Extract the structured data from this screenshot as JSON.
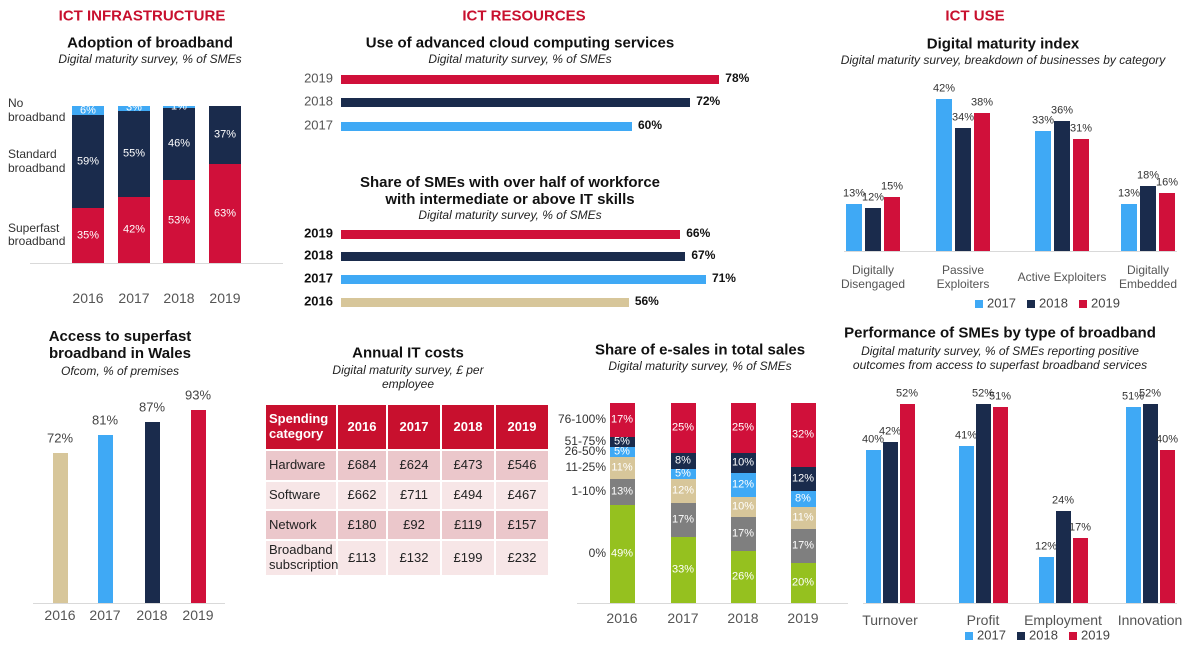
{
  "sections": [
    "ICT INFRASTRUCTURE",
    "ICT RESOURCES",
    "ICT USE"
  ],
  "chart_data": [
    {
      "type": "bar",
      "stacked": true,
      "title": "Adoption of broadband",
      "subtitle": "Digital maturity survey, % of SMEs",
      "categories": [
        "2016",
        "2017",
        "2018",
        "2019"
      ],
      "ylim": [
        0,
        100
      ],
      "series": [
        {
          "name": "Superfast broadband",
          "color": "#d0103a",
          "values": [
            35,
            42,
            53,
            63
          ],
          "value_labels": [
            "35%",
            "42%",
            "53%",
            "63%"
          ]
        },
        {
          "name": "Standard broadband",
          "color": "#1a2b4c",
          "values": [
            59,
            55,
            46,
            37
          ],
          "value_labels": [
            "59%",
            "55%",
            "46%",
            "37%"
          ]
        },
        {
          "name": "No broadband",
          "color": "#3fa9f5",
          "values": [
            6,
            3,
            1,
            null
          ],
          "value_labels": [
            "6%",
            "3%",
            "1%",
            null
          ]
        }
      ]
    },
    {
      "type": "bar",
      "title": "Access to superfast broadband in Wales",
      "subtitle": "Ofcom, % of premises",
      "categories": [
        "2016",
        "2017",
        "2018",
        "2019"
      ],
      "values": [
        72,
        81,
        87,
        93
      ],
      "value_labels": [
        "72%",
        "81%",
        "87%",
        "93%"
      ],
      "colors": [
        "#d7c69a",
        "#3fa9f5",
        "#1a2b4c",
        "#d0103a"
      ],
      "ylim": [
        0,
        100
      ]
    },
    {
      "type": "hbar",
      "title": "Use of advanced cloud computing services",
      "subtitle": "Digital maturity survey, % of SMEs",
      "categories": [
        "2019",
        "2018",
        "2017"
      ],
      "values": [
        78,
        72,
        60
      ],
      "value_labels": [
        "78%",
        "72%",
        "60%"
      ],
      "colors": [
        "#d0103a",
        "#1a2b4c",
        "#3fa9f5"
      ],
      "xlim": [
        0,
        100
      ]
    },
    {
      "type": "hbar",
      "title": "Share of SMEs with over half of workforce with intermediate or above IT skills",
      "subtitle": "Digital maturity survey, % of SMEs",
      "categories": [
        "2019",
        "2018",
        "2017",
        "2016"
      ],
      "values": [
        66,
        67,
        71,
        56
      ],
      "value_labels": [
        "66%",
        "67%",
        "71%",
        "56%"
      ],
      "colors": [
        "#d0103a",
        "#1a2b4c",
        "#3fa9f5",
        "#d7c69a"
      ],
      "xlim": [
        0,
        100
      ]
    },
    {
      "type": "bar",
      "stacked": true,
      "title": "Share of e-sales in total sales",
      "subtitle": "Digital maturity survey, % of SMEs",
      "categories": [
        "2016",
        "2017",
        "2018",
        "2019"
      ],
      "ylim": [
        0,
        100
      ],
      "series": [
        {
          "name": "0%",
          "color": "#95c11f",
          "values": [
            49,
            33,
            26,
            20
          ],
          "value_labels": [
            "49%",
            "33%",
            "26%",
            "20%"
          ]
        },
        {
          "name": "1-10%",
          "color": "#7f7f7f",
          "values": [
            13,
            17,
            17,
            17
          ],
          "value_labels": [
            "13%",
            "17%",
            "17%",
            "17%"
          ]
        },
        {
          "name": "11-25%",
          "color": "#d7c69a",
          "values": [
            11,
            12,
            10,
            11
          ],
          "value_labels": [
            "11%",
            "12%",
            "10%",
            "11%"
          ]
        },
        {
          "name": "26-50%",
          "color": "#3fa9f5",
          "values": [
            5,
            5,
            12,
            8
          ],
          "value_labels": [
            "5%",
            "5%",
            "12%",
            "8%"
          ]
        },
        {
          "name": "51-75%",
          "color": "#1a2b4c",
          "values": [
            5,
            8,
            10,
            12
          ],
          "value_labels": [
            "5%",
            "8%",
            "10%",
            "12%"
          ]
        },
        {
          "name": "76-100%",
          "color": "#d0103a",
          "values": [
            17,
            25,
            25,
            32
          ],
          "value_labels": [
            "17%",
            "25%",
            "25%",
            "32%"
          ]
        }
      ]
    },
    {
      "type": "bar",
      "title": "Digital maturity index",
      "subtitle": "Digital maturity survey, breakdown of businesses by category",
      "categories": [
        "Digitally Disengaged",
        "Passive Exploiters",
        "Active Exploiters",
        "Digitally Embedded"
      ],
      "ylim": [
        0,
        45
      ],
      "series": [
        {
          "name": "2017",
          "color": "#3fa9f5",
          "values": [
            13,
            42,
            33,
            13
          ],
          "value_labels": [
            "13%",
            "42%",
            "33%",
            "13%"
          ]
        },
        {
          "name": "2018",
          "color": "#1a2b4c",
          "values": [
            12,
            34,
            36,
            18
          ],
          "value_labels": [
            "12%",
            "34%",
            "36%",
            "18%"
          ]
        },
        {
          "name": "2019",
          "color": "#d0103a",
          "values": [
            15,
            38,
            31,
            16
          ],
          "value_labels": [
            "15%",
            "38%",
            "31%",
            "16%"
          ]
        }
      ]
    },
    {
      "type": "bar",
      "title": "Performance of SMEs by type of broadband",
      "subtitle": "Digital maturity survey, % of SMEs reporting positive outcomes from access to superfast broadband services",
      "categories": [
        "Turnover",
        "Profit",
        "Employment",
        "Innovation"
      ],
      "ylim": [
        0,
        55
      ],
      "series": [
        {
          "name": "2017",
          "color": "#3fa9f5",
          "values": [
            40,
            41,
            12,
            51
          ],
          "value_labels": [
            "40%",
            "41%",
            "12%",
            "51%"
          ]
        },
        {
          "name": "2018",
          "color": "#1a2b4c",
          "values": [
            42,
            52,
            24,
            52
          ],
          "value_labels": [
            "42%",
            "52%",
            "24%",
            "52%"
          ]
        },
        {
          "name": "2019",
          "color": "#d0103a",
          "values": [
            52,
            51,
            17,
            40
          ],
          "value_labels": [
            "52%",
            "51%",
            "17%",
            "40%"
          ]
        }
      ]
    }
  ],
  "table": {
    "title": "Annual IT costs",
    "subtitle": "Digital maturity survey, £ per employee",
    "header": [
      "Spending category",
      "2016",
      "2017",
      "2018",
      "2019"
    ],
    "rows": [
      [
        "Hardware",
        "£684",
        "£624",
        "£473",
        "£546"
      ],
      [
        "Software",
        "£662",
        "£711",
        "£494",
        "£467"
      ],
      [
        "Network",
        "£180",
        "£92",
        "£119",
        "£157"
      ],
      [
        "Broadband subscription",
        "£113",
        "£132",
        "£199",
        "£232"
      ]
    ]
  }
}
